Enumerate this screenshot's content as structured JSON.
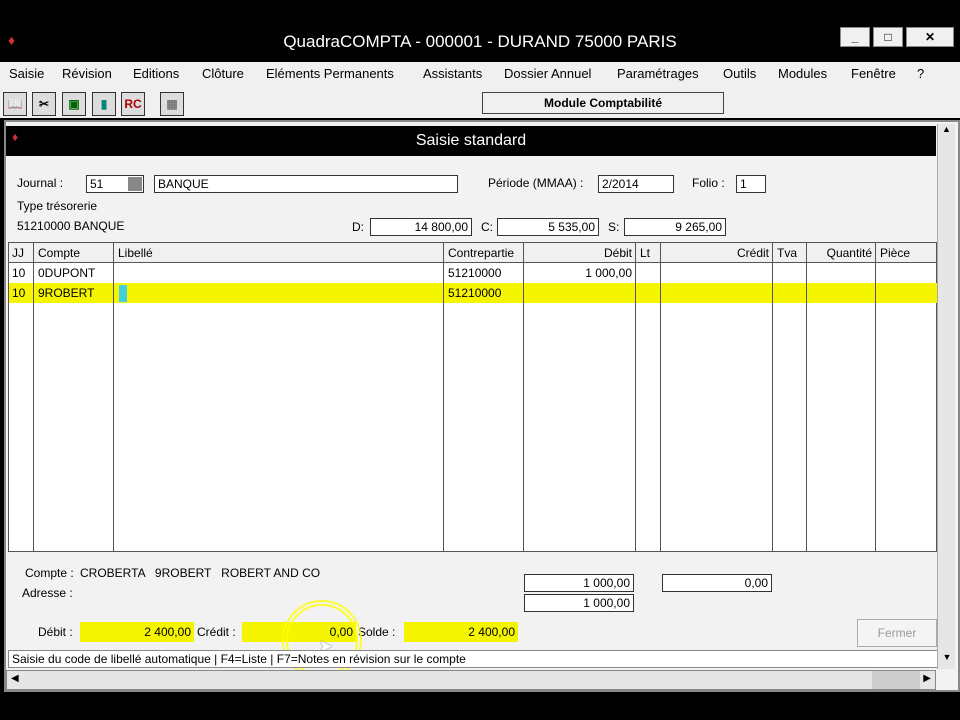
{
  "app": {
    "title": "QuadraCOMPTA - 000001 - DURAND 75000 PARIS",
    "module": "Module Comptabilité"
  },
  "menu": [
    "Saisie",
    "Révision",
    "Editions",
    "Clôture",
    "Eléments Permanents",
    "Assistants",
    "Dossier Annuel",
    "Paramétrages",
    "Outils",
    "Modules",
    "Fenêtre",
    "?"
  ],
  "toolbar": [
    "book-icon",
    "tools-icon",
    "screen-icon",
    "ledger-icon",
    "rc-icon",
    "calculator-icon"
  ],
  "window": {
    "title": "Saisie standard"
  },
  "form": {
    "journal_label": "Journal :",
    "journal_code": "51",
    "journal_name": "BANQUE",
    "periode_label": "Période (MMAA) :",
    "periode": "2/2014",
    "folio_label": "Folio :",
    "folio": "1",
    "type_label": "Type trésorerie",
    "type_value": "51210000 BANQUE",
    "d_label": "D:",
    "d_value": "14 800,00",
    "c_label": "C:",
    "c_value": "5 535,00",
    "s_label": "S:",
    "s_value": "9 265,00"
  },
  "grid": {
    "headers": [
      "JJ",
      "Compte",
      "Libellé",
      "Contrepartie",
      "Débit",
      "Lt",
      "Crédit",
      "Tva",
      "Quantité",
      "Pièce"
    ],
    "rows": [
      [
        "10",
        "0DUPONT",
        "",
        "51210000",
        "1 000,00",
        "",
        "",
        "",
        "",
        ""
      ],
      [
        "10",
        "9ROBERT",
        "",
        "51210000",
        "",
        "",
        "",
        "",
        "",
        ""
      ]
    ]
  },
  "footer": {
    "compte_label": "Compte :",
    "compte_value": "CROBERTA   9ROBERT   ROBERT AND CO",
    "adresse_label": "Adresse :",
    "total_debit": "1 000,00",
    "total_credit": "0,00",
    "total_diff": "1 000,00",
    "debit_label": "Débit :",
    "debit": "2 400,00",
    "credit_label": "Crédit :",
    "credit": "0,00",
    "solde_label": "Solde :",
    "solde": "2 400,00",
    "fermer": "Fermer"
  },
  "status": "Saisie du code de libellé automatique | F4=Liste | F7=Notes en révision sur le compte",
  "colors": {
    "highlight": "#f5f500",
    "cursor": "#40d0e0"
  }
}
